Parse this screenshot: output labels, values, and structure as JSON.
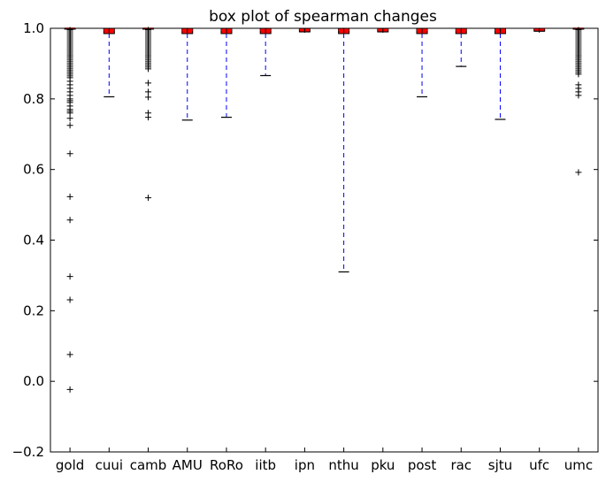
{
  "chart_data": {
    "type": "box",
    "title": "box plot of spearman changes",
    "xlabel": "",
    "ylabel": "",
    "ylim": [
      -0.2,
      1.0
    ],
    "yticks": [
      -0.2,
      0.0,
      0.2,
      0.4,
      0.6,
      0.8,
      1.0
    ],
    "ytick_labels": [
      "−0.2",
      "0.0",
      "0.2",
      "0.4",
      "0.6",
      "0.8",
      "1.0"
    ],
    "grid": false,
    "colors": {
      "box": "#000000",
      "median": "#ff0000",
      "whisker": "#0000ff",
      "flier": "#000000"
    },
    "categories": [
      "gold",
      "cuui",
      "camb",
      "AMU",
      "RoRo",
      "iitb",
      "ipn",
      "nthu",
      "pku",
      "post",
      "rac",
      "sjtu",
      "ufc",
      "umc"
    ],
    "boxes": [
      {
        "label": "gold",
        "q1": 0.999,
        "median": 1.0,
        "q3": 1.0,
        "whisker_low": 0.999,
        "whisker_high": 1.0,
        "fliers": [
          0.995,
          0.99,
          0.985,
          0.98,
          0.975,
          0.97,
          0.965,
          0.96,
          0.955,
          0.95,
          0.945,
          0.94,
          0.935,
          0.93,
          0.925,
          0.92,
          0.915,
          0.91,
          0.905,
          0.9,
          0.895,
          0.89,
          0.885,
          0.88,
          0.875,
          0.87,
          0.865,
          0.86,
          0.85,
          0.84,
          0.83,
          0.82,
          0.81,
          0.8,
          0.795,
          0.79,
          0.78,
          0.77,
          0.765,
          0.76,
          0.745,
          0.725,
          0.645,
          0.523,
          0.457,
          0.297,
          0.231,
          0.076,
          -0.023
        ]
      },
      {
        "label": "cuui",
        "q1": 0.985,
        "median": 0.995,
        "q3": 1.0,
        "whisker_low": 0.806,
        "whisker_high": 1.0,
        "fliers": []
      },
      {
        "label": "camb",
        "q1": 0.999,
        "median": 1.0,
        "q3": 1.0,
        "whisker_low": 0.999,
        "whisker_high": 1.0,
        "fliers": [
          0.995,
          0.99,
          0.985,
          0.98,
          0.975,
          0.97,
          0.965,
          0.96,
          0.955,
          0.95,
          0.945,
          0.94,
          0.935,
          0.93,
          0.925,
          0.92,
          0.915,
          0.91,
          0.905,
          0.9,
          0.895,
          0.89,
          0.885,
          0.845,
          0.82,
          0.805,
          0.76,
          0.748,
          0.52
        ]
      },
      {
        "label": "AMU",
        "q1": 0.985,
        "median": 0.995,
        "q3": 1.0,
        "whisker_low": 0.74,
        "whisker_high": 1.0,
        "fliers": []
      },
      {
        "label": "RoRo",
        "q1": 0.985,
        "median": 0.995,
        "q3": 1.0,
        "whisker_low": 0.748,
        "whisker_high": 1.0,
        "fliers": []
      },
      {
        "label": "iitb",
        "q1": 0.985,
        "median": 0.995,
        "q3": 1.0,
        "whisker_low": 0.866,
        "whisker_high": 1.0,
        "fliers": []
      },
      {
        "label": "ipn",
        "q1": 0.99,
        "median": 0.997,
        "q3": 1.0,
        "whisker_low": 0.99,
        "whisker_high": 1.0,
        "fliers": []
      },
      {
        "label": "nthu",
        "q1": 0.985,
        "median": 0.995,
        "q3": 1.0,
        "whisker_low": 0.31,
        "whisker_high": 1.0,
        "fliers": []
      },
      {
        "label": "pku",
        "q1": 0.99,
        "median": 0.997,
        "q3": 1.0,
        "whisker_low": 0.99,
        "whisker_high": 1.0,
        "fliers": []
      },
      {
        "label": "post",
        "q1": 0.985,
        "median": 0.995,
        "q3": 1.0,
        "whisker_low": 0.806,
        "whisker_high": 1.0,
        "fliers": []
      },
      {
        "label": "rac",
        "q1": 0.985,
        "median": 0.995,
        "q3": 1.0,
        "whisker_low": 0.892,
        "whisker_high": 1.0,
        "fliers": []
      },
      {
        "label": "sjtu",
        "q1": 0.985,
        "median": 0.995,
        "q3": 1.0,
        "whisker_low": 0.742,
        "whisker_high": 1.0,
        "fliers": []
      },
      {
        "label": "ufc",
        "q1": 0.992,
        "median": 0.998,
        "q3": 1.0,
        "whisker_low": 0.992,
        "whisker_high": 1.0,
        "fliers": []
      },
      {
        "label": "umc",
        "q1": 0.999,
        "median": 1.0,
        "q3": 1.0,
        "whisker_low": 0.999,
        "whisker_high": 1.0,
        "fliers": [
          0.995,
          0.99,
          0.985,
          0.98,
          0.975,
          0.97,
          0.965,
          0.96,
          0.955,
          0.95,
          0.945,
          0.94,
          0.935,
          0.93,
          0.925,
          0.92,
          0.915,
          0.91,
          0.905,
          0.9,
          0.895,
          0.89,
          0.885,
          0.88,
          0.875,
          0.87,
          0.84,
          0.83,
          0.82,
          0.81,
          0.592
        ]
      }
    ]
  }
}
